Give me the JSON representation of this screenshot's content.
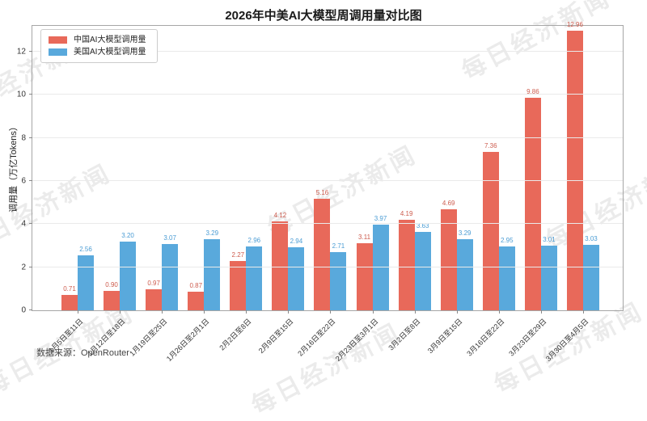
{
  "title": "2026年中美AI大模型周调用量对比图",
  "watermark_text": "每日经济新闻",
  "source_text": "数据来源：OpenRouter",
  "chart_data": {
    "type": "bar",
    "title": "2026年中美AI大模型周调用量对比图",
    "xlabel": "",
    "ylabel": "调用量（万亿Tokens）",
    "categories": [
      "1月5日至11日",
      "1月12日至18日",
      "1月19日至25日",
      "1月26日至2月1日",
      "2月2日至8日",
      "2月9日至15日",
      "2月16日至22日",
      "2月23日至3月1日",
      "3月2日至8日",
      "3月9日至15日",
      "3月16日至22日",
      "3月23日至29日",
      "3月30日至4月5日"
    ],
    "series": [
      {
        "name": "中国AI大模型调用量",
        "color": "#e8695a",
        "label_color": "#cd5c4e",
        "values": [
          0.71,
          0.9,
          0.97,
          0.87,
          2.27,
          4.12,
          5.16,
          3.11,
          4.19,
          4.69,
          7.36,
          9.86,
          12.96
        ]
      },
      {
        "name": "美国AI大模型调用量",
        "color": "#59a9dc",
        "label_color": "#4a9cd4",
        "values": [
          2.56,
          3.2,
          3.07,
          3.29,
          2.96,
          2.94,
          2.71,
          3.97,
          3.63,
          3.29,
          2.95,
          3.01,
          3.03
        ]
      }
    ],
    "yticks": [
      0,
      2,
      4,
      6,
      8,
      10,
      12
    ],
    "ylim": [
      0,
      13.2
    ],
    "grid": true,
    "legend_position": "upper left"
  }
}
